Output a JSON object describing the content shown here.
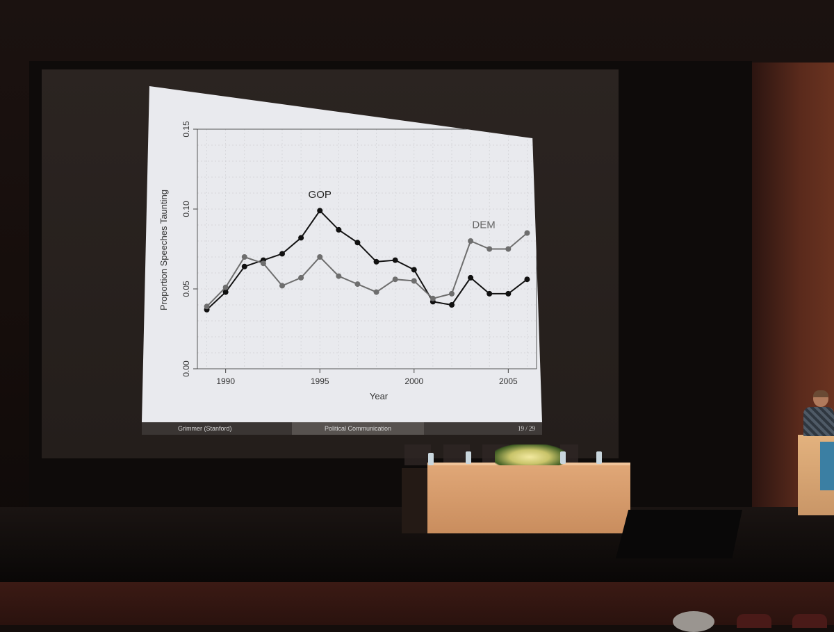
{
  "scene": "photograph",
  "slide": {
    "footer_left": "Grimmer  (Stanford)",
    "footer_mid": "Political Communication",
    "footer_page": "19 / 29"
  },
  "chart_data": {
    "type": "line",
    "xlabel": "Year",
    "ylabel": "Proportion Speeches Taunting",
    "xlim": [
      1988.5,
      2006.5
    ],
    "ylim": [
      0.0,
      0.15
    ],
    "x_ticks": [
      "1990",
      "1995",
      "2000",
      "2005"
    ],
    "y_ticks": [
      "0.00",
      "0.05",
      "0.10",
      "0.15"
    ],
    "grid": true,
    "x": [
      1989,
      1990,
      1991,
      1992,
      1993,
      1994,
      1995,
      1996,
      1997,
      1998,
      1999,
      2000,
      2001,
      2002,
      2003,
      2004,
      2005,
      2006
    ],
    "series": [
      {
        "name": "GOP",
        "color": "#111111",
        "values": [
          0.037,
          0.048,
          0.064,
          0.068,
          0.072,
          0.082,
          0.099,
          0.087,
          0.079,
          0.067,
          0.068,
          0.062,
          0.042,
          0.04,
          0.057,
          0.047,
          0.047,
          0.056
        ]
      },
      {
        "name": "DEM",
        "color": "#6e6e6e",
        "values": [
          0.039,
          0.051,
          0.07,
          0.066,
          0.052,
          0.057,
          0.07,
          0.058,
          0.053,
          0.048,
          0.056,
          0.055,
          0.044,
          0.047,
          0.08,
          0.075,
          0.075,
          0.085
        ]
      }
    ],
    "annotations": [
      {
        "text": "GOP",
        "x": 1995,
        "y": 0.107
      },
      {
        "text": "DEM",
        "x": 2003.7,
        "y": 0.088
      }
    ]
  }
}
